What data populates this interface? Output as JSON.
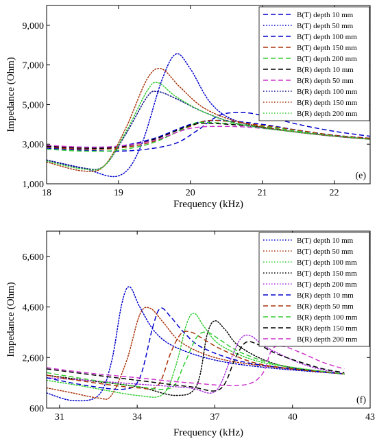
{
  "chart_data": [
    {
      "type": "line",
      "panel_label": "(e)",
      "xlabel": "Frequency (kHz)",
      "ylabel": "Impedance (Ohm)",
      "xlim": [
        18,
        22.5
      ],
      "ylim": [
        1000,
        10000
      ],
      "xticks": [
        18,
        19,
        20,
        21,
        22
      ],
      "xtick_labels": [
        "18",
        "19",
        "20",
        "21",
        "22"
      ],
      "yticks": [
        1000,
        3000,
        5000,
        7000,
        9000
      ],
      "ytick_labels": [
        "1,000",
        "3,000",
        "5,000",
        "7,000",
        "9,000"
      ],
      "legend_position": "top-right",
      "series": [
        {
          "name": "B(T) depth 10 mm",
          "color": "#0000cc",
          "dash": "dashed",
          "x": [
            18,
            18.5,
            19,
            19.4,
            19.8,
            20.1,
            20.4,
            20.7,
            21,
            21.5,
            22,
            22.5
          ],
          "y": [
            2800,
            2700,
            2650,
            2750,
            3050,
            3700,
            4450,
            4600,
            4450,
            4000,
            3650,
            3400
          ]
        },
        {
          "name": "B(T) depth 50 mm",
          "color": "#0000cc",
          "dash": "dotted",
          "x": [
            18,
            18.5,
            19,
            19.3,
            19.6,
            19.8,
            20,
            20.3,
            20.7,
            21.5,
            22.5
          ],
          "y": [
            2200,
            1800,
            1400,
            2800,
            6200,
            7550,
            6800,
            5000,
            4100,
            3600,
            3250
          ]
        },
        {
          "name": "B(T) depth 100 mm",
          "color": "#0000cc",
          "dash": "dashed",
          "x": [
            18,
            18.5,
            19,
            19.5,
            20,
            20.4,
            21,
            21.5,
            22,
            22.5
          ],
          "y": [
            2900,
            2850,
            2900,
            3300,
            4000,
            4200,
            4000,
            3700,
            3450,
            3300
          ]
        },
        {
          "name": "B(T) depth 150 mm",
          "color": "#a83208",
          "dash": "dashed",
          "x": [
            18,
            18.5,
            19,
            19.5,
            20,
            20.3,
            21,
            21.5,
            22,
            22.5
          ],
          "y": [
            2850,
            2750,
            2800,
            3150,
            3900,
            4200,
            3950,
            3700,
            3450,
            3300
          ]
        },
        {
          "name": "B(T) depth 200 mm",
          "color": "#33cc33",
          "dash": "dashed",
          "x": [
            18,
            18.5,
            19,
            19.5,
            20,
            20.2,
            21,
            21.5,
            22,
            22.5
          ],
          "y": [
            2750,
            2650,
            2700,
            3100,
            3950,
            4100,
            3900,
            3650,
            3400,
            3250
          ]
        },
        {
          "name": "B(R) depth 10 mm",
          "color": "#000000",
          "dash": "dashed",
          "x": [
            18,
            18.5,
            19,
            19.5,
            20,
            20.3,
            21,
            21.5,
            22,
            22.5
          ],
          "y": [
            2900,
            2800,
            2850,
            3250,
            3950,
            4050,
            3850,
            3600,
            3400,
            3250
          ]
        },
        {
          "name": "B(R) depth 50 mm",
          "color": "#cc33cc",
          "dash": "dashed",
          "x": [
            18,
            18.5,
            19,
            19.5,
            20,
            20.5,
            21,
            21.5,
            22,
            22.5
          ],
          "y": [
            2950,
            2850,
            2900,
            3200,
            3800,
            3900,
            3800,
            3600,
            3400,
            3250
          ]
        },
        {
          "name": "B(R) depth 100 mm",
          "color": "#111188",
          "dash": "dotted",
          "x": [
            18,
            18.5,
            18.8,
            19.1,
            19.4,
            19.55,
            19.8,
            20.2,
            20.7,
            21.5,
            22.5
          ],
          "y": [
            2200,
            1800,
            1900,
            3500,
            5400,
            5650,
            5300,
            4600,
            4000,
            3600,
            3250
          ]
        },
        {
          "name": "B(R) depth 150 mm",
          "color": "#a83208",
          "dash": "dotted",
          "x": [
            18,
            18.5,
            18.8,
            19.1,
            19.4,
            19.6,
            19.85,
            20.2,
            20.7,
            21.5,
            22.5
          ],
          "y": [
            2100,
            1650,
            1900,
            3800,
            6300,
            6800,
            5900,
            4800,
            4100,
            3600,
            3250
          ]
        },
        {
          "name": "B(R) depth 200 mm",
          "color": "#33cc33",
          "dash": "dotted",
          "x": [
            18,
            18.5,
            18.8,
            19.1,
            19.4,
            19.55,
            19.8,
            20.2,
            20.7,
            21.5,
            22.5
          ],
          "y": [
            2150,
            1750,
            1900,
            3600,
            5700,
            6100,
            5400,
            4600,
            4000,
            3600,
            3250
          ]
        }
      ]
    },
    {
      "type": "line",
      "panel_label": "(f)",
      "xlabel": "Frequency (kHz)",
      "ylabel": "Impedance (Ohm)",
      "xlim": [
        30.5,
        43
      ],
      "ylim": [
        600,
        7600
      ],
      "xticks": [
        31,
        34,
        37,
        40,
        43
      ],
      "xtick_labels": [
        "31",
        "34",
        "37",
        "40",
        "43"
      ],
      "yticks": [
        600,
        2600,
        4600,
        6600
      ],
      "ytick_labels": [
        "600",
        "2,600",
        "4,600",
        "6,600"
      ],
      "legend_position": "top-right",
      "series": [
        {
          "name": "B(T) depth 10 mm",
          "color": "#0000cc",
          "dash": "dotted",
          "x": [
            30.5,
            31.5,
            32.5,
            33,
            33.4,
            33.7,
            34.1,
            34.7,
            35.5,
            37,
            39,
            42
          ],
          "y": [
            1200,
            900,
            1100,
            2400,
            4700,
            5400,
            4600,
            3600,
            3000,
            2500,
            2200,
            1950
          ]
        },
        {
          "name": "B(T) depth 50 mm",
          "color": "#a83208",
          "dash": "dotted",
          "x": [
            30.5,
            31.5,
            32.5,
            33,
            33.6,
            34.1,
            34.5,
            35,
            35.7,
            37,
            39,
            42
          ],
          "y": [
            1400,
            1200,
            1000,
            1100,
            2500,
            4300,
            4550,
            4000,
            3200,
            2600,
            2250,
            1950
          ]
        },
        {
          "name": "B(T) depth 100 mm",
          "color": "#33cc33",
          "dash": "dotted",
          "x": [
            30.5,
            32,
            34,
            35,
            35.5,
            35.9,
            36.2,
            36.6,
            37.2,
            38.5,
            40,
            42
          ],
          "y": [
            1700,
            1450,
            1100,
            1150,
            2300,
            3900,
            4350,
            3800,
            3100,
            2500,
            2200,
            1950
          ]
        },
        {
          "name": "B(T) depth 150 mm",
          "color": "#000000",
          "dash": "dotted",
          "x": [
            30.5,
            32,
            34,
            35.5,
            36.3,
            36.7,
            37,
            37.4,
            38,
            39.5,
            42
          ],
          "y": [
            1900,
            1700,
            1450,
            1100,
            1500,
            3500,
            4050,
            3700,
            3000,
            2300,
            1950
          ]
        },
        {
          "name": "B(T) depth 200 mm",
          "color": "#aa33dd",
          "dash": "dotted",
          "x": [
            30.5,
            32,
            34,
            36,
            37,
            37.6,
            38,
            38.4,
            39,
            40.5,
            42
          ],
          "y": [
            1800,
            1700,
            1550,
            1400,
            1250,
            2500,
            3350,
            3450,
            3000,
            2300,
            1950
          ]
        },
        {
          "name": "B(R) depth 10 mm",
          "color": "#0000cc",
          "dash": "dashed",
          "x": [
            30.5,
            32,
            33.5,
            34.1,
            34.6,
            34.9,
            35.3,
            35.8,
            36.5,
            38,
            40,
            42
          ],
          "y": [
            1800,
            1500,
            1350,
            1800,
            3800,
            4550,
            4200,
            3600,
            3000,
            2450,
            2150,
            1950
          ]
        },
        {
          "name": "B(R) depth 50 mm",
          "color": "#a83208",
          "dash": "dashed",
          "x": [
            30.5,
            32,
            34,
            34.8,
            35.3,
            35.7,
            36.1,
            36.6,
            37.3,
            38.5,
            40,
            42
          ],
          "y": [
            1900,
            1650,
            1400,
            1500,
            2800,
            3550,
            3600,
            3300,
            2900,
            2400,
            2150,
            1950
          ]
        },
        {
          "name": "B(R) depth 100 mm",
          "color": "#33cc33",
          "dash": "dashed",
          "x": [
            30.5,
            32,
            34,
            35.3,
            35.8,
            36.3,
            36.7,
            37.2,
            38,
            39.5,
            42
          ],
          "y": [
            2000,
            1750,
            1450,
            1400,
            2300,
            3400,
            3600,
            3300,
            2800,
            2300,
            1950
          ]
        },
        {
          "name": "B(R) depth 150 mm",
          "color": "#000000",
          "dash": "dashed",
          "x": [
            30.5,
            32,
            34,
            36,
            37.2,
            37.8,
            38.2,
            38.7,
            39.5,
            41,
            42
          ],
          "y": [
            2150,
            1950,
            1700,
            1450,
            1350,
            2600,
            3200,
            3100,
            2700,
            2200,
            2000
          ]
        },
        {
          "name": "B(R) depth 200 mm",
          "color": "#cc33cc",
          "dash": "dashed",
          "x": [
            30.5,
            32,
            34,
            36,
            38,
            38.8,
            39.2,
            39.6,
            40.3,
            41.2,
            42
          ],
          "y": [
            2200,
            2000,
            1800,
            1600,
            1500,
            1900,
            2900,
            3050,
            2800,
            2400,
            2150
          ]
        }
      ]
    }
  ]
}
